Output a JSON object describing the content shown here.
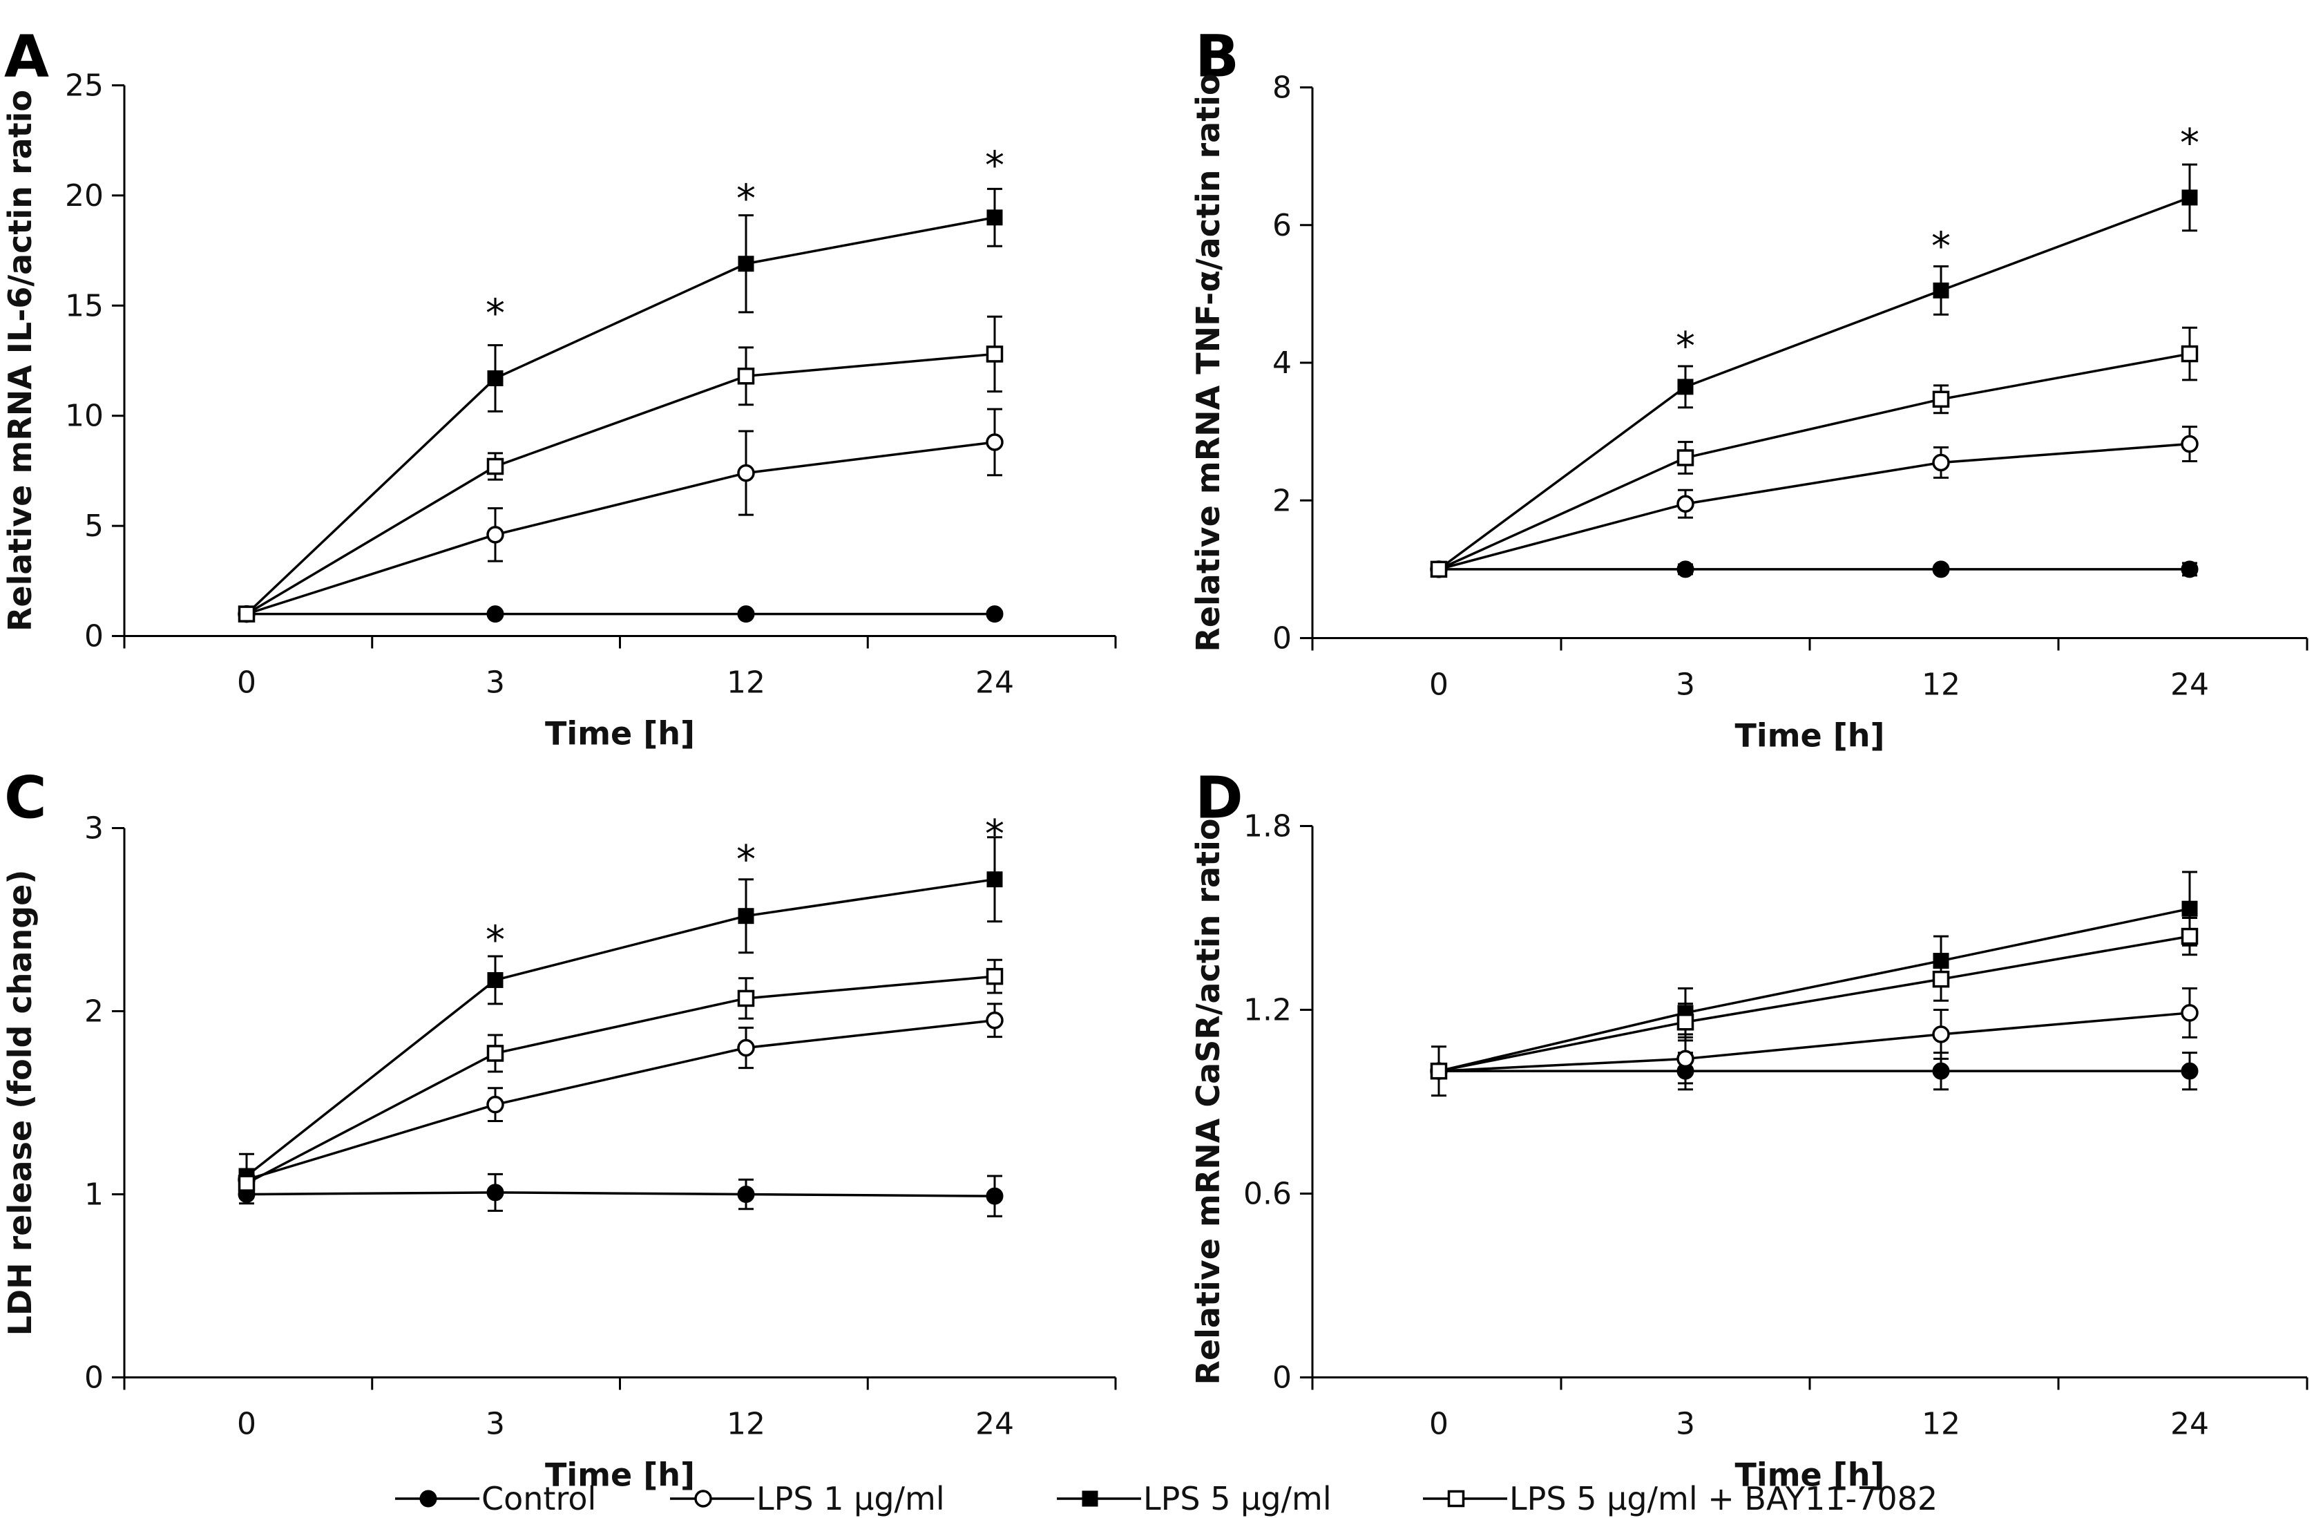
{
  "figure": {
    "legend": [
      {
        "name": "Control",
        "marker": "filled-circle"
      },
      {
        "name": "LPS 1 μg/ml",
        "marker": "open-circle"
      },
      {
        "name": "LPS 5 μg/ml",
        "marker": "filled-square"
      },
      {
        "name": "LPS 5 μg/ml + BAY11-7082",
        "marker": "open-square"
      }
    ],
    "colors": {
      "ink": "#000000",
      "background": "#ffffff"
    }
  },
  "chart_data": [
    {
      "panel": "A",
      "type": "line",
      "xlabel": "Time [h]",
      "ylabel": "Relative mRNA IL-6/actin ratio",
      "categories": [
        "0",
        "3",
        "12",
        "24"
      ],
      "ylim": [
        0,
        25
      ],
      "yticks": [
        0,
        5,
        10,
        15,
        20,
        25
      ],
      "series": [
        {
          "name": "Control",
          "marker": "filled-circle",
          "values": [
            1.0,
            1.0,
            1.0,
            1.0
          ],
          "errors": [
            0,
            0,
            0,
            0
          ]
        },
        {
          "name": "LPS 1 μg/ml",
          "marker": "open-circle",
          "values": [
            1.0,
            4.6,
            7.4,
            8.8
          ],
          "errors": [
            0,
            1.2,
            1.9,
            1.5
          ]
        },
        {
          "name": "LPS 5 μg/ml",
          "marker": "filled-square",
          "values": [
            1.0,
            11.7,
            16.9,
            19.0
          ],
          "errors": [
            0,
            1.5,
            2.2,
            1.3
          ]
        },
        {
          "name": "LPS 5 μg/ml + BAY11-7082",
          "marker": "open-square",
          "values": [
            1.0,
            7.7,
            11.8,
            12.8
          ],
          "errors": [
            0,
            0.6,
            1.3,
            1.7
          ]
        }
      ],
      "significance": [
        {
          "category": "3",
          "label": "*",
          "y": 15
        },
        {
          "category": "12",
          "label": "*",
          "y": 20.2
        },
        {
          "category": "24",
          "label": "*",
          "y": 21.7
        }
      ]
    },
    {
      "panel": "B",
      "type": "line",
      "xlabel": "Time [h]",
      "ylabel": "Relative mRNA TNF-α/actin ratio",
      "categories": [
        "0",
        "3",
        "12",
        "24"
      ],
      "ylim": [
        0,
        8
      ],
      "yticks": [
        0,
        2,
        4,
        6,
        8
      ],
      "series": [
        {
          "name": "Control",
          "marker": "filled-circle",
          "values": [
            1.0,
            1.0,
            1.0,
            1.0
          ],
          "errors": [
            0,
            0.07,
            0.05,
            0.09
          ]
        },
        {
          "name": "LPS 1 μg/ml",
          "marker": "open-circle",
          "values": [
            1.0,
            1.95,
            2.55,
            2.82
          ],
          "errors": [
            0,
            0.2,
            0.22,
            0.25
          ]
        },
        {
          "name": "LPS 5 μg/ml",
          "marker": "filled-square",
          "values": [
            1.0,
            3.65,
            5.05,
            6.4
          ],
          "errors": [
            0,
            0.3,
            0.35,
            0.48
          ]
        },
        {
          "name": "LPS 5 μg/ml + BAY11-7082",
          "marker": "open-square",
          "values": [
            1.0,
            2.62,
            3.47,
            4.13
          ],
          "errors": [
            0,
            0.23,
            0.2,
            0.38
          ]
        }
      ],
      "significance": [
        {
          "category": "3",
          "label": "*",
          "y": 4.35
        },
        {
          "category": "12",
          "label": "*",
          "y": 5.8
        },
        {
          "category": "24",
          "label": "*",
          "y": 7.3
        }
      ]
    },
    {
      "panel": "C",
      "type": "line",
      "xlabel": "Time [h]",
      "ylabel": "LDH release (fold change)",
      "categories": [
        "0",
        "3",
        "12",
        "24"
      ],
      "ylim": [
        0,
        3
      ],
      "yticks": [
        0,
        1,
        2,
        3
      ],
      "series": [
        {
          "name": "Control",
          "marker": "filled-circle",
          "values": [
            1.0,
            1.01,
            1.0,
            0.99
          ],
          "errors": [
            0.05,
            0.1,
            0.08,
            0.11
          ]
        },
        {
          "name": "LPS 1 μg/ml",
          "marker": "open-circle",
          "values": [
            1.08,
            1.49,
            1.8,
            1.95
          ],
          "errors": [
            0,
            0.09,
            0.11,
            0.09
          ]
        },
        {
          "name": "LPS 5 μg/ml",
          "marker": "filled-square",
          "values": [
            1.1,
            2.17,
            2.52,
            2.72
          ],
          "errors": [
            0.12,
            0.13,
            0.2,
            0.23
          ]
        },
        {
          "name": "LPS 5 μg/ml + BAY11-7082",
          "marker": "open-square",
          "values": [
            1.06,
            1.77,
            2.07,
            2.19
          ],
          "errors": [
            0,
            0.1,
            0.11,
            0.09
          ]
        }
      ],
      "significance": [
        {
          "category": "3",
          "label": "*",
          "y": 2.43
        },
        {
          "category": "12",
          "label": "*",
          "y": 2.87
        },
        {
          "category": "24",
          "label": "*",
          "y": 3.01
        }
      ]
    },
    {
      "panel": "D",
      "type": "line",
      "xlabel": "Time [h]",
      "ylabel": "Relative mRNA CaSR/actin ratio",
      "categories": [
        "0",
        "3",
        "12",
        "24"
      ],
      "ylim": [
        0,
        1.8
      ],
      "yticks": [
        "0",
        "0.6",
        "1.2",
        "1.8"
      ],
      "series": [
        {
          "name": "Control",
          "marker": "filled-circle",
          "values": [
            1.0,
            1.0,
            1.0,
            1.0
          ],
          "errors": [
            0.08,
            0.06,
            0.06,
            0.06
          ]
        },
        {
          "name": "LPS 1 μg/ml",
          "marker": "open-circle",
          "values": [
            1.0,
            1.04,
            1.12,
            1.19
          ],
          "errors": [
            0,
            0.08,
            0.08,
            0.08
          ]
        },
        {
          "name": "LPS 5 μg/ml",
          "marker": "filled-square",
          "values": [
            1.0,
            1.19,
            1.36,
            1.53
          ],
          "errors": [
            0,
            0.08,
            0.08,
            0.12
          ]
        },
        {
          "name": "LPS 5 μg/ml + BAY11-7082",
          "marker": "open-square",
          "values": [
            1.0,
            1.16,
            1.3,
            1.44
          ],
          "errors": [
            0,
            0.06,
            0.07,
            0.06
          ]
        }
      ],
      "significance": []
    }
  ]
}
